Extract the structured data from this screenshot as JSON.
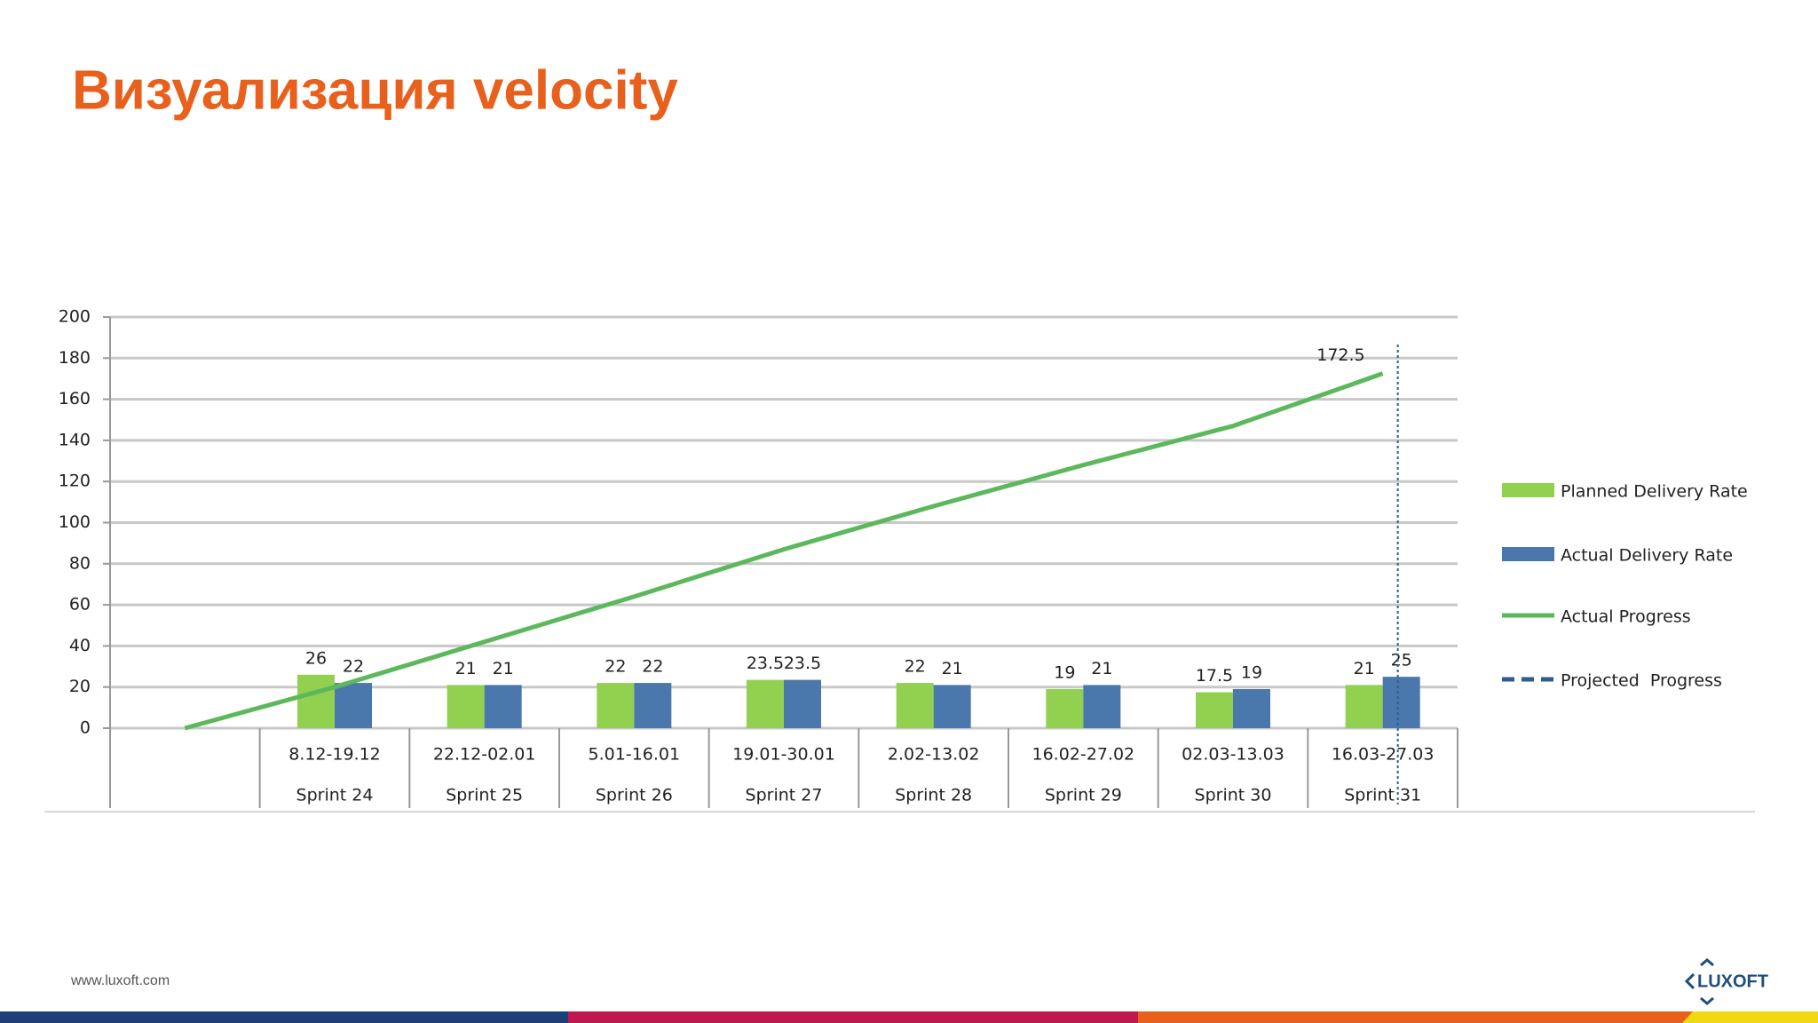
{
  "header": {
    "title": "Визуализация velocity"
  },
  "chart_data": {
    "type": "bar",
    "categories": [
      null,
      "8.12-19.12",
      "22.12-02.01",
      "5.01-16.01",
      "19.01-30.01",
      "2.02-13.02",
      "16.02-27.02",
      "02.03-13.03",
      "16.03-27.03"
    ],
    "sprints": [
      null,
      "Sprint 24",
      "Sprint 25",
      "Sprint 26",
      "Sprint 27",
      "Sprint 28",
      "Sprint 29",
      "Sprint 30",
      "Sprint 31"
    ],
    "series": [
      {
        "name": "Planned Delivery Rate",
        "type": "bar",
        "color": "#92d050",
        "values": [
          null,
          26,
          21,
          22,
          23.5,
          22,
          19,
          17.5,
          21
        ]
      },
      {
        "name": "Actual Delivery Rate",
        "type": "bar",
        "color": "#4a78ad",
        "values": [
          null,
          22,
          21,
          22,
          23.5,
          21,
          21,
          19,
          25
        ]
      },
      {
        "name": "Actual Progress",
        "type": "line",
        "color": "#5cb85c",
        "values": [
          0,
          20,
          42,
          64,
          87,
          108,
          128,
          147,
          172.5
        ],
        "value_labels": [
          null,
          null,
          null,
          null,
          null,
          null,
          null,
          null,
          "172.5"
        ]
      },
      {
        "name": "Projected  Progress",
        "type": "projection",
        "color": "#2e5d8f"
      }
    ],
    "ylim": [
      0,
      200
    ],
    "yticks": [
      0,
      20,
      40,
      60,
      80,
      100,
      120,
      140,
      160,
      180,
      200
    ],
    "grid": true,
    "legend": "right"
  },
  "footer": {
    "url": "www.luxoft.com",
    "logo": "LUXOFT"
  }
}
